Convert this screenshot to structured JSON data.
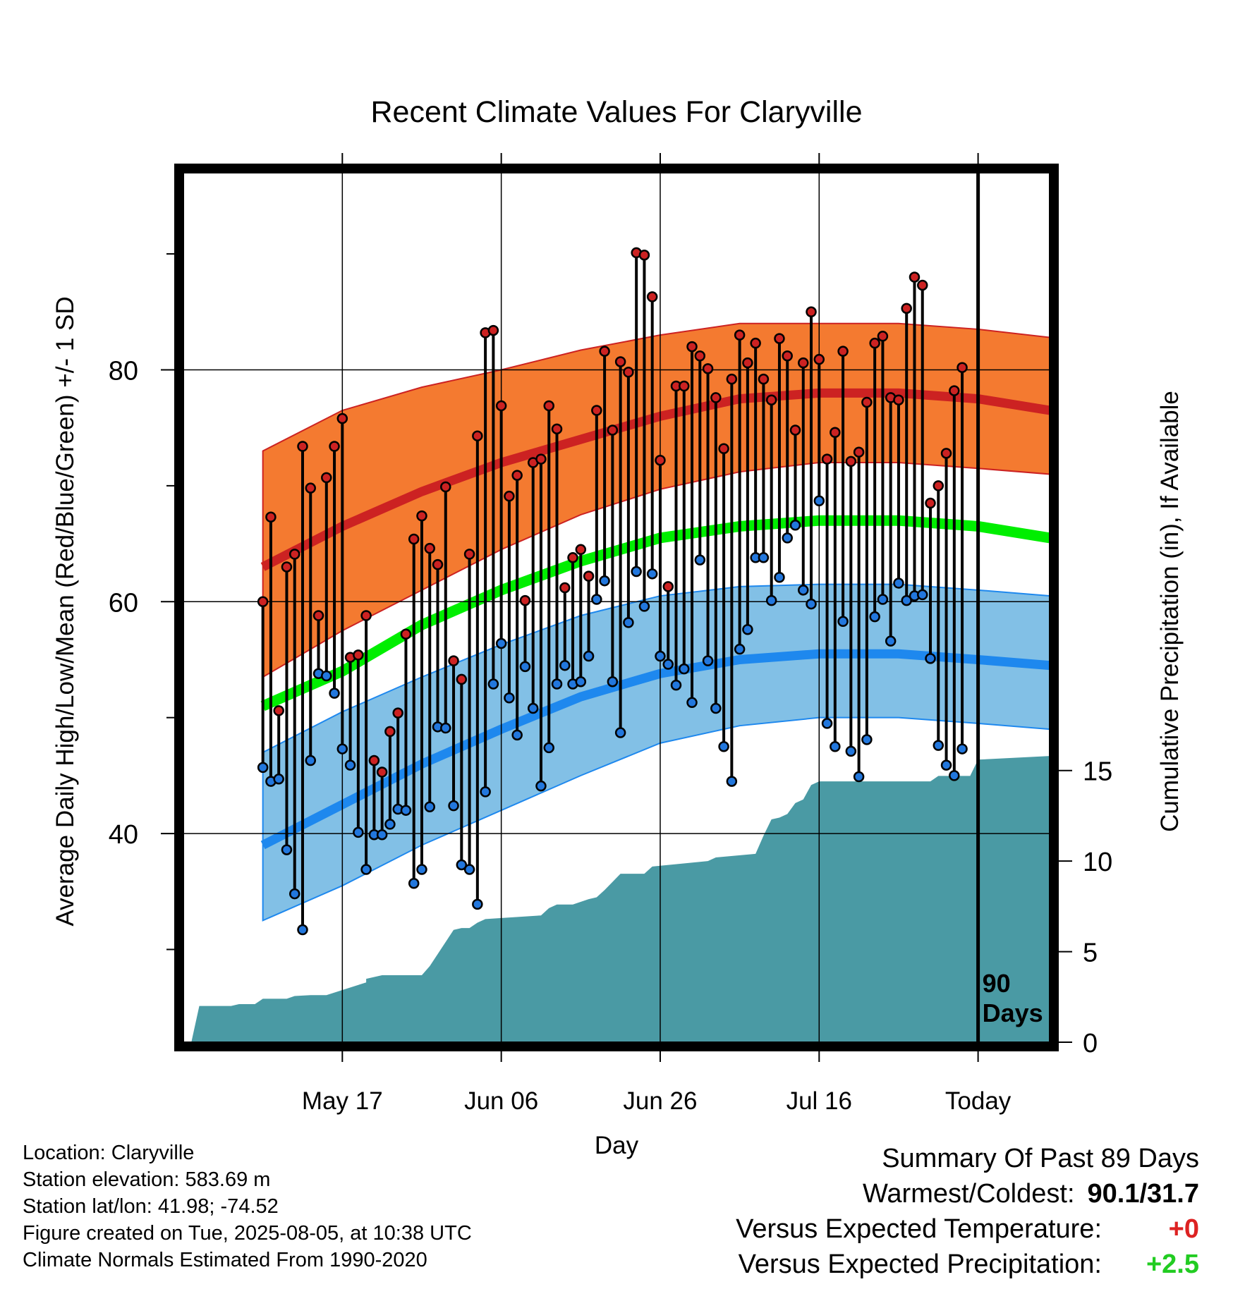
{
  "chart_data": {
    "type": "line",
    "title": "Recent Climate Values For Claryville",
    "xlabel": "Day",
    "ylabel": "Average Daily High/Low/Mean (Red/Blue/Green) +/- 1 SD",
    "ylabel_right": "Cumulative Precipitation (in), If Available",
    "x_tick_labels": [
      "May 17",
      "Jun 06",
      "Jun 26",
      "Jul 16",
      "Today"
    ],
    "x_tick_days": [
      10,
      30,
      50,
      70,
      90
    ],
    "xlim": [
      -10,
      99
    ],
    "ylim": [
      22,
      97
    ],
    "y_ticks": [
      40,
      60,
      80
    ],
    "y_minor_ticks": [
      30,
      50,
      70,
      90
    ],
    "precip_ylim": [
      0,
      48
    ],
    "precip_ticks": [
      0,
      5,
      10,
      15
    ],
    "today_marker_label": "90 Days",
    "normals": {
      "days": [
        0,
        10,
        20,
        30,
        40,
        50,
        60,
        70,
        80,
        90,
        99
      ],
      "high_mean": [
        63.0,
        66.5,
        69.5,
        72.0,
        74.0,
        76.0,
        77.5,
        78.0,
        78.0,
        77.5,
        76.5
      ],
      "high_upper": [
        73.0,
        76.5,
        78.5,
        80.0,
        81.7,
        83.0,
        84.0,
        84.0,
        84.0,
        83.5,
        82.8
      ],
      "high_lower": [
        53.5,
        57.5,
        61.0,
        64.5,
        67.5,
        69.7,
        71.2,
        72.0,
        72.0,
        71.5,
        71.0
      ],
      "normal_mean": [
        51.0,
        54.0,
        58.0,
        61.0,
        63.5,
        65.5,
        66.5,
        67.0,
        67.0,
        66.5,
        65.5
      ],
      "low_mean": [
        39.0,
        42.5,
        46.0,
        49.0,
        51.8,
        53.8,
        55.0,
        55.5,
        55.5,
        55.0,
        54.5
      ],
      "low_upper": [
        47.0,
        50.5,
        53.5,
        56.3,
        58.8,
        60.5,
        61.3,
        61.5,
        61.5,
        61.0,
        60.5
      ],
      "low_lower": [
        32.5,
        35.5,
        39.0,
        42.0,
        45.0,
        47.8,
        49.3,
        50.0,
        50.0,
        49.5,
        49.0
      ]
    },
    "series": [
      {
        "name": "High",
        "color": "#cc2222",
        "values": [
          60.0,
          67.3,
          50.6,
          63.0,
          64.1,
          73.4,
          69.8,
          58.8,
          70.7,
          73.4,
          75.8,
          55.2,
          55.4,
          58.8,
          46.3,
          45.3,
          48.8,
          50.4,
          57.2,
          65.4,
          67.4,
          64.6,
          63.2,
          69.9,
          54.9,
          53.3,
          64.1,
          74.3,
          83.2,
          83.4,
          76.9,
          69.1,
          70.9,
          60.1,
          72.0,
          72.3,
          76.9,
          74.9,
          61.2,
          63.8,
          64.5,
          62.2,
          76.5,
          81.6,
          74.8,
          80.7,
          79.8,
          90.1,
          89.9,
          86.3,
          72.2,
          61.3,
          78.6,
          78.6,
          82.0,
          81.2,
          80.1,
          77.6,
          73.2,
          79.2,
          83.0,
          80.6,
          82.3,
          79.2,
          77.4,
          82.7,
          81.2,
          74.8,
          80.6,
          85.0,
          80.9,
          72.3,
          74.6,
          81.6,
          72.1,
          72.9,
          77.2,
          82.3,
          82.9,
          77.6,
          77.4,
          85.3,
          88.0,
          87.3,
          68.5,
          70.0,
          72.8,
          78.2,
          80.2
        ]
      },
      {
        "name": "Low",
        "color": "#2277dd",
        "values": [
          45.7,
          44.5,
          44.7,
          38.6,
          34.8,
          31.7,
          46.3,
          53.8,
          53.6,
          52.1,
          47.3,
          45.9,
          40.1,
          36.9,
          39.9,
          39.9,
          40.8,
          42.1,
          42.0,
          35.7,
          36.9,
          42.3,
          49.2,
          49.1,
          42.4,
          37.3,
          36.9,
          33.9,
          43.6,
          52.9,
          56.4,
          51.7,
          48.5,
          54.4,
          50.8,
          44.1,
          47.4,
          52.9,
          54.5,
          52.9,
          53.1,
          55.3,
          60.2,
          61.8,
          53.1,
          48.7,
          58.2,
          62.6,
          59.6,
          62.4,
          55.3,
          54.6,
          52.8,
          54.2,
          51.3,
          63.6,
          54.9,
          50.8,
          47.5,
          44.5,
          55.9,
          57.6,
          63.8,
          63.8,
          60.1,
          62.1,
          65.5,
          66.6,
          61.0,
          59.8,
          68.7,
          49.5,
          47.5,
          58.3,
          47.1,
          44.9,
          48.1,
          58.7,
          60.2,
          56.6,
          61.6,
          60.1,
          60.5,
          60.6,
          55.1,
          47.6,
          45.9,
          45.0,
          47.3
        ]
      }
    ],
    "precipitation": {
      "days": [
        -9.0,
        -8.0,
        -4.0,
        -3.0,
        -1.0,
        0.0,
        3.0,
        4.0,
        6.0,
        7.0,
        8.0,
        13.0,
        13.0,
        15.0,
        18.0,
        19.0,
        20.0,
        21.0,
        24.0,
        25.0,
        26.0,
        27.0,
        28.0,
        35.0,
        36.0,
        37.0,
        38.0,
        39.0,
        41.0,
        42.0,
        43.0,
        45.0,
        48.0,
        49.0,
        56.0,
        57.0,
        62.0,
        63.0,
        64.0,
        65.0,
        66.0,
        67.0,
        68.0,
        69.0,
        70.0,
        75.0,
        84.0,
        85.0,
        89.0,
        90.0,
        99.0
      ],
      "values": [
        0.0,
        2.0,
        2.0,
        2.1,
        2.1,
        2.4,
        2.4,
        2.55,
        2.6,
        2.6,
        2.6,
        3.3,
        3.5,
        3.7,
        3.7,
        3.7,
        3.7,
        4.2,
        6.2,
        6.3,
        6.3,
        6.6,
        6.8,
        7.0,
        7.4,
        7.6,
        7.6,
        7.6,
        7.9,
        8.0,
        8.4,
        9.3,
        9.3,
        9.7,
        10.0,
        10.2,
        10.4,
        11.4,
        12.3,
        12.4,
        12.6,
        13.2,
        13.4,
        14.2,
        14.4,
        14.4,
        14.4,
        14.7,
        14.7,
        15.6,
        15.8
      ]
    }
  },
  "info": {
    "location": "Location: Claryville",
    "elevation": "Station elevation: 583.69 m",
    "latlon": "Station lat/lon: 41.98; -74.52",
    "created": "Figure created on Tue, 2025-08-05, at 10:38 UTC",
    "normals": "Climate Normals Estimated From 1990-2020"
  },
  "summary": {
    "title": "Summary Of Past 89 Days",
    "warmest_coldest_label": "Warmest/Coldest:",
    "warmest_coldest_value": "90.1/31.7",
    "temp_label": "Versus Expected Temperature:",
    "temp_value": "+0",
    "temp_color": "#dd2222",
    "precip_label": "Versus Expected Precipitation:",
    "precip_value": "+2.5",
    "precip_color": "#22cc22"
  },
  "colors": {
    "high_band": "#f47a30",
    "high_mean": "#cc2222",
    "normal_mean": "#00ee00",
    "low_band": "#82c0e6",
    "low_mean": "#1e88ee",
    "precip": "#4a9aa4"
  }
}
